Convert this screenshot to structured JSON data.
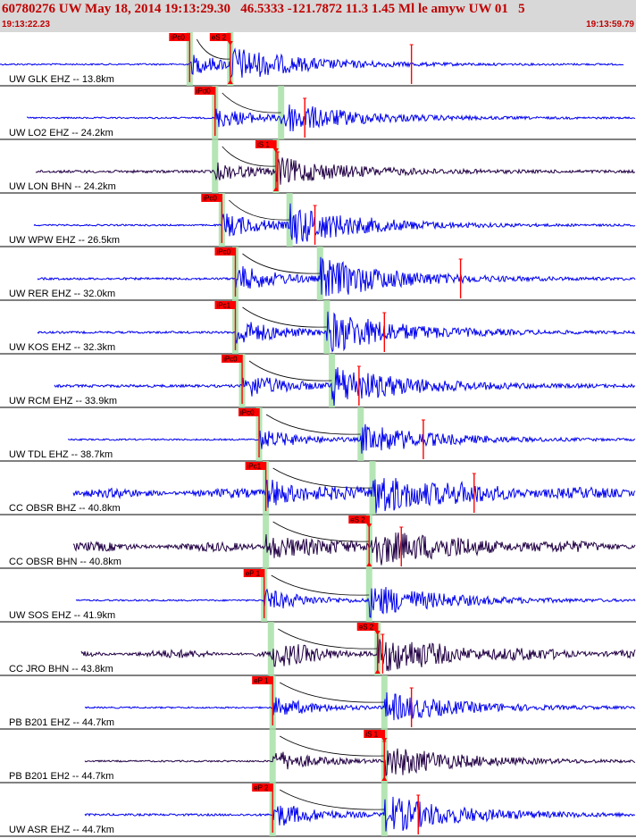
{
  "header": {
    "title": "60780276 UW May 18, 2014 19:13:29.30   46.5333 -121.7872 11.3 1.45 Ml le amyw UW 01   5",
    "start_time": "19:13:22.23",
    "end_time": "19:13:59.79"
  },
  "colors": {
    "trace_vertical": "#0000ee",
    "trace_horizontal": "#220044",
    "pick": "#ff0000",
    "pick_window": "#a8e0a8",
    "theory_curve": "#000000",
    "header_bg": "#d8d8d8",
    "header_text": "#c00000"
  },
  "chart_data": {
    "type": "line",
    "title": "60780276 UW May 18, 2014 19:13:29.30   46.5333 -121.7872 11.3 1.45 Ml le amyw UW 01   5",
    "xlabel": "",
    "ylabel": "",
    "time_range": [
      "19:13:22.23",
      "19:13:59.79"
    ],
    "x_range_seconds": [
      0,
      37.56
    ],
    "grid": false,
    "traces": [
      {
        "label": "UW GLK EHZ -- 13.8km",
        "component": "Z",
        "start": 0.0,
        "end": 36.8,
        "p_time": 11.2,
        "p_label": "iPc0",
        "s_time": 13.6,
        "s_label": "eS 2",
        "amp_time": 24.3,
        "noise": 0.03,
        "amp": 0.55
      },
      {
        "label": "UW LO2 EHZ -- 24.2km",
        "component": "Z",
        "start": 1.6,
        "end": 38.2,
        "p_time": 12.7,
        "p_label": "iPd0",
        "s_time": 16.6,
        "s_label": "",
        "amp_time": 18.0,
        "noise": 0.03,
        "amp": 0.55
      },
      {
        "label": "UW LON BHN -- 24.2km",
        "component": "N",
        "start": 2.1,
        "end": 38.4,
        "p_time": 12.7,
        "p_label": "",
        "s_time": 16.3,
        "s_label": "iS 1",
        "amp_time": 16.4,
        "noise": 0.05,
        "amp": 0.45
      },
      {
        "label": "UW WPW EHZ -- 26.5km",
        "component": "Z",
        "start": 2.0,
        "end": 38.8,
        "p_time": 13.1,
        "p_label": "iPc0",
        "s_time": 17.1,
        "s_label": "",
        "amp_time": 18.6,
        "noise": 0.03,
        "amp": 0.7
      },
      {
        "label": "UW RER EHZ -- 32.0km",
        "component": "Z",
        "start": 2.2,
        "end": 39.7,
        "p_time": 13.9,
        "p_label": "iPc0",
        "s_time": 18.9,
        "s_label": "",
        "amp_time": 27.2,
        "noise": 0.04,
        "amp": 0.75
      },
      {
        "label": "UW KOS EHZ -- 32.3km",
        "component": "Z",
        "start": 2.2,
        "end": 39.7,
        "p_time": 13.9,
        "p_label": "iPc1",
        "s_time": 19.3,
        "s_label": "",
        "amp_time": 22.7,
        "noise": 0.04,
        "amp": 0.75
      },
      {
        "label": "UW RCM EHZ -- 33.9km",
        "component": "Z",
        "start": 3.2,
        "end": 40.0,
        "p_time": 14.3,
        "p_label": "iPc0",
        "s_time": 19.6,
        "s_label": "",
        "amp_time": 21.2,
        "noise": 0.05,
        "amp": 0.7
      },
      {
        "label": "UW TDL EHZ -- 38.7km",
        "component": "Z",
        "start": 4.0,
        "end": 40.7,
        "p_time": 15.3,
        "p_label": "iPc0",
        "s_time": 21.3,
        "s_label": "",
        "amp_time": 25.0,
        "noise": 0.03,
        "amp": 0.55
      },
      {
        "label": "CC OBSR BHZ -- 40.8km",
        "component": "Z",
        "start": 4.3,
        "end": 41.1,
        "p_time": 15.7,
        "p_label": "iPc1",
        "s_time": 22.0,
        "s_label": "",
        "amp_time": 28.0,
        "noise": 0.12,
        "amp": 0.75
      },
      {
        "label": "CC OBSR BHN -- 40.8km",
        "component": "N",
        "start": 4.3,
        "end": 41.1,
        "p_time": 15.7,
        "p_label": "",
        "s_time": 21.8,
        "s_label": "eS 2",
        "amp_time": 23.7,
        "noise": 0.12,
        "amp": 0.7
      },
      {
        "label": "UW SOS EHZ -- 41.9km",
        "component": "Z",
        "start": 4.5,
        "end": 41.3,
        "p_time": 15.6,
        "p_label": "eP 1",
        "s_time": 21.8,
        "s_label": "",
        "amp_time": 39.1,
        "noise": 0.03,
        "amp": 0.6
      },
      {
        "label": "CC JRO BHN -- 43.8km",
        "component": "N",
        "start": 4.8,
        "end": 41.6,
        "p_time": 16.0,
        "p_label": "",
        "s_time": 22.3,
        "s_label": "eS 2",
        "amp_time": 22.6,
        "noise": 0.1,
        "amp": 0.6
      },
      {
        "label": "PB B201 EHZ -- 44.7km",
        "component": "Z",
        "start": 5.0,
        "end": 41.7,
        "p_time": 16.1,
        "p_label": "eP 1",
        "s_time": 22.7,
        "s_label": "",
        "amp_time": 24.3,
        "noise": 0.03,
        "amp": 0.55
      },
      {
        "label": "PB B201 EH2 -- 44.7km",
        "component": "N",
        "start": 5.0,
        "end": 41.7,
        "p_time": 16.1,
        "p_label": "",
        "s_time": 22.7,
        "s_label": "iS 1",
        "amp_time": 22.7,
        "noise": 0.03,
        "amp": 0.6
      },
      {
        "label": "UW ASR EHZ -- 44.7km",
        "component": "Z",
        "start": 5.0,
        "end": 41.7,
        "p_time": 16.1,
        "p_label": "eP 2",
        "s_time": 22.7,
        "s_label": "",
        "amp_time": 24.7,
        "noise": 0.04,
        "amp": 0.7
      }
    ]
  }
}
